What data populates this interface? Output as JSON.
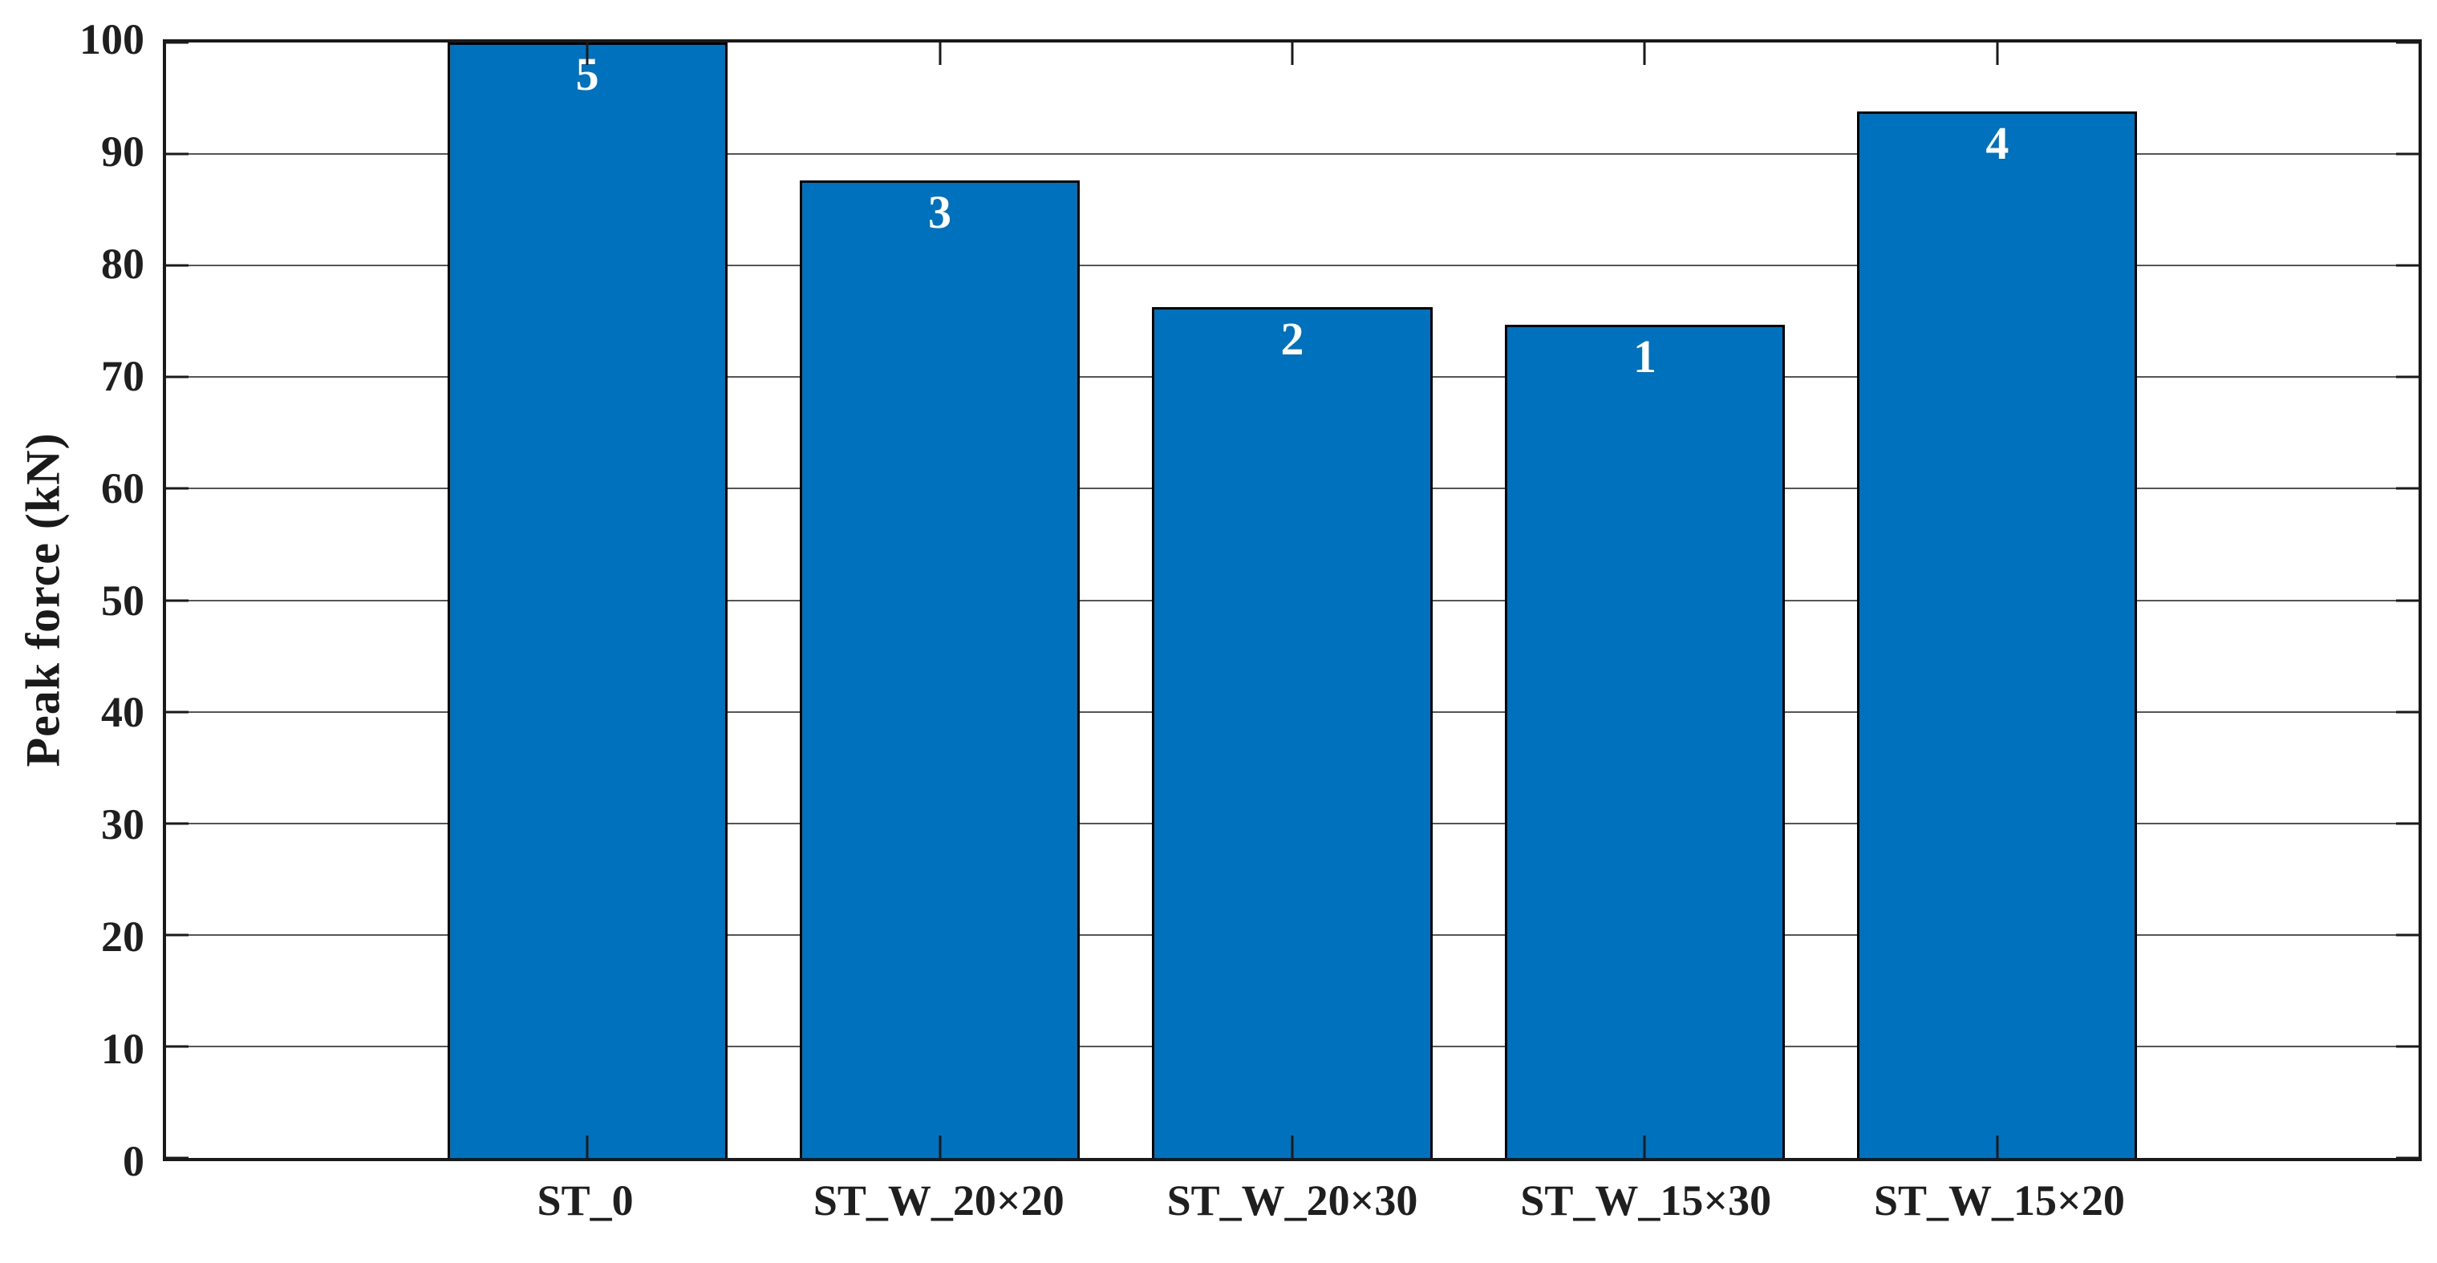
{
  "figure": {
    "background": "#ffffff"
  },
  "chart_data": {
    "type": "bar",
    "title": "",
    "xlabel": "",
    "ylabel": "Peak force (kN)",
    "categories": [
      "ST_0",
      "ST_W_20×20",
      "ST_W_20×30",
      "ST_W_15×30",
      "ST_W_15×20"
    ],
    "values": [
      100,
      87.6,
      76.3,
      74.7,
      93.8
    ],
    "bar_labels": [
      "5",
      "3",
      "2",
      "1",
      "4"
    ],
    "ylim": [
      0,
      100
    ],
    "yticks": [
      0,
      10,
      20,
      30,
      40,
      50,
      60,
      70,
      80,
      90,
      100
    ],
    "grid": "horizontal",
    "legend": "none",
    "colors": {
      "bar_fill": "#0072BD",
      "bar_edge": "#000000",
      "bar_label_text": "#ffffff",
      "grid_line": "#555555",
      "axis_box": "#1a1a1a",
      "tick_label_text": "#1f1f1f"
    }
  }
}
